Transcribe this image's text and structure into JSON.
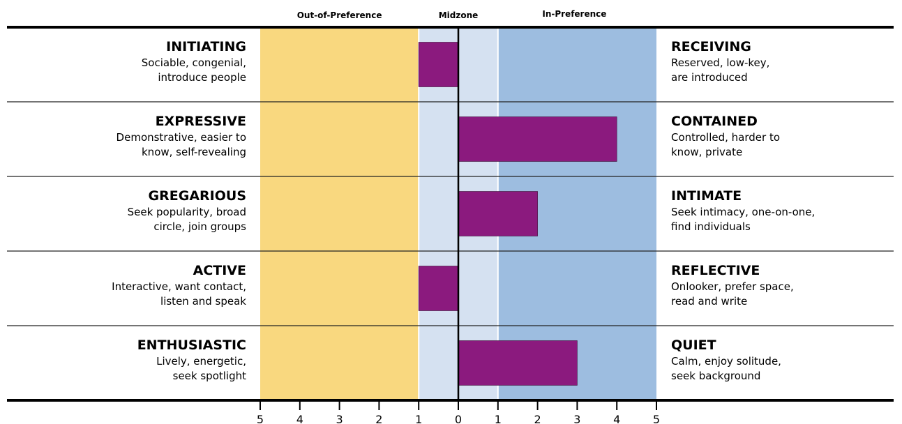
{
  "chart_data": {
    "type": "bar",
    "orientation": "horizontal",
    "zone_labels": {
      "out_of_preference": "Out-of-Preference",
      "midzone": "Midzone",
      "in_preference": "In-Preference"
    },
    "colors": {
      "out_of_preference": "#f9d87f",
      "midzone": "#d5e1f1",
      "in_preference": "#9dbde0",
      "bar": "#8b1a7e",
      "axis": "#000000"
    },
    "x_ticks": [
      {
        "value": -5,
        "label": "5"
      },
      {
        "value": -4,
        "label": "4"
      },
      {
        "value": -3,
        "label": "3"
      },
      {
        "value": -2,
        "label": "2"
      },
      {
        "value": -1,
        "label": "1"
      },
      {
        "value": 0,
        "label": "0"
      },
      {
        "value": 1,
        "label": "1"
      },
      {
        "value": 2,
        "label": "2"
      },
      {
        "value": 3,
        "label": "3"
      },
      {
        "value": 4,
        "label": "4"
      },
      {
        "value": 5,
        "label": "5"
      }
    ],
    "xlim": [
      -5,
      5
    ],
    "midzone_range": [
      -1,
      1
    ],
    "rows": [
      {
        "left_title": "INITIATING",
        "left_desc": [
          "Sociable, congenial,",
          "introduce people"
        ],
        "right_title": "RECEIVING",
        "right_desc": [
          "Reserved, low-key,",
          "are introduced"
        ],
        "value": -1
      },
      {
        "left_title": "EXPRESSIVE",
        "left_desc": [
          "Demonstrative, easier to",
          "know, self-revealing"
        ],
        "right_title": "CONTAINED",
        "right_desc": [
          "Controlled, harder to",
          "know, private"
        ],
        "value": 4
      },
      {
        "left_title": "GREGARIOUS",
        "left_desc": [
          "Seek popularity, broad",
          "circle, join groups"
        ],
        "right_title": "INTIMATE",
        "right_desc": [
          "Seek intimacy, one-on-one,",
          "find individuals"
        ],
        "value": 2
      },
      {
        "left_title": "ACTIVE",
        "left_desc": [
          "Interactive, want contact,",
          "listen and speak"
        ],
        "right_title": "REFLECTIVE",
        "right_desc": [
          "Onlooker, prefer space,",
          "read and write"
        ],
        "value": -1
      },
      {
        "left_title": "ENTHUSIASTIC",
        "left_desc": [
          "Lively, energetic,",
          "seek spotlight"
        ],
        "right_title": "QUIET",
        "right_desc": [
          "Calm, enjoy solitude,",
          "seek background"
        ],
        "value": 3
      }
    ]
  }
}
